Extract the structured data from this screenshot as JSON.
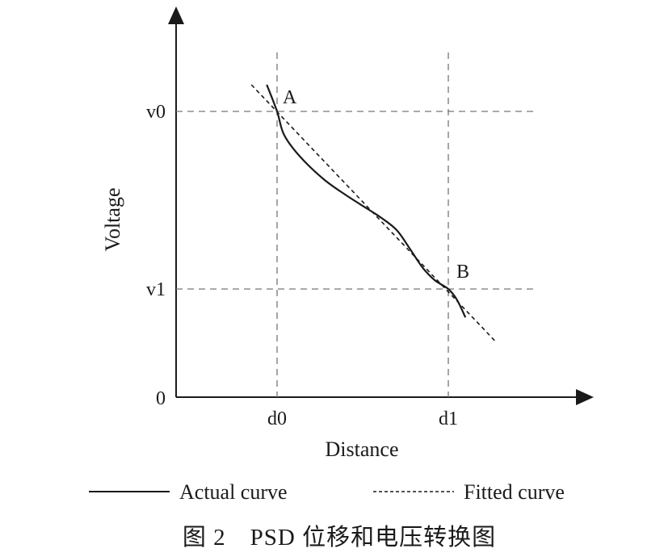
{
  "chart_data": {
    "type": "line",
    "xlabel": "Distance",
    "ylabel": "Voltage",
    "x_ticks": [
      "d0",
      "d1"
    ],
    "y_ticks": [
      "0",
      "v1",
      "v0"
    ],
    "points": [
      {
        "label": "A",
        "x": "d0",
        "y": "v0"
      },
      {
        "label": "B",
        "x": "d1",
        "y": "v1"
      }
    ],
    "series": [
      {
        "name": "Actual curve",
        "style": "solid",
        "points": [
          [
            -0.06,
            1.15
          ],
          [
            0.0,
            1.0
          ],
          [
            0.04,
            0.87
          ],
          [
            0.13,
            0.75
          ],
          [
            0.27,
            0.62
          ],
          [
            0.4,
            0.53
          ],
          [
            0.53,
            0.45
          ],
          [
            0.61,
            0.4
          ],
          [
            0.7,
            0.33
          ],
          [
            0.78,
            0.22
          ],
          [
            0.85,
            0.12
          ],
          [
            0.92,
            0.05
          ],
          [
            1.0,
            0.0
          ],
          [
            1.05,
            -0.06
          ],
          [
            1.1,
            -0.16
          ]
        ]
      },
      {
        "name": "Fitted curve",
        "style": "dashed",
        "points": [
          [
            -0.15,
            1.15
          ],
          [
            1.27,
            -0.29
          ]
        ]
      }
    ]
  },
  "legend": {
    "actual_label": "Actual curve",
    "fitted_label": "Fitted curve"
  },
  "caption": "图 2　PSD 位移和电压转换图",
  "colors": {
    "ink": "#1a1a1a",
    "grid": "#777777"
  }
}
